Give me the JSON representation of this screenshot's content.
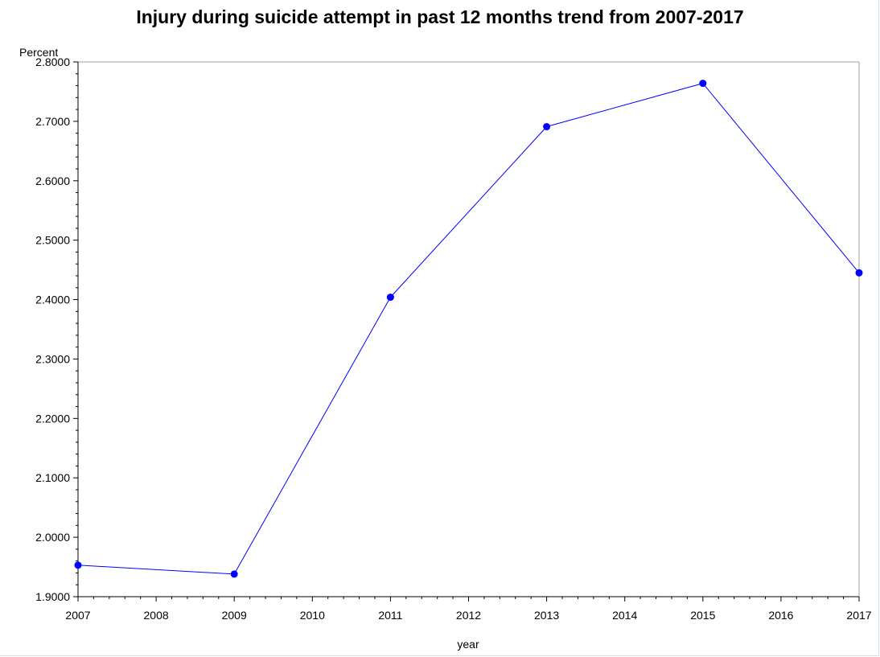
{
  "chart_data": {
    "type": "line",
    "title": "Injury during suicide attempt in past 12 months trend from 2007-2017",
    "xlabel": "year",
    "ylabel": "Percent",
    "x": [
      2007,
      2009,
      2011,
      2013,
      2015,
      2017
    ],
    "series": [
      {
        "values": [
          1.953,
          1.938,
          2.404,
          2.691,
          2.764,
          2.445
        ],
        "color": "#0000ff"
      }
    ],
    "xlim": [
      2007,
      2017
    ],
    "ylim": [
      1.9,
      2.8
    ],
    "x_ticks": [
      "2007",
      "2008",
      "2009",
      "2010",
      "2011",
      "2012",
      "2013",
      "2014",
      "2015",
      "2016",
      "2017"
    ],
    "y_ticks": [
      "1.9000",
      "2.0000",
      "2.1000",
      "2.2000",
      "2.3000",
      "2.4000",
      "2.5000",
      "2.6000",
      "2.7000",
      "2.8000"
    ],
    "grid": false,
    "legend": "none",
    "colors": {
      "line": "#0000ff",
      "marker": "#0000ff",
      "axis": "#000000",
      "frame": "#a0a0a0"
    }
  }
}
